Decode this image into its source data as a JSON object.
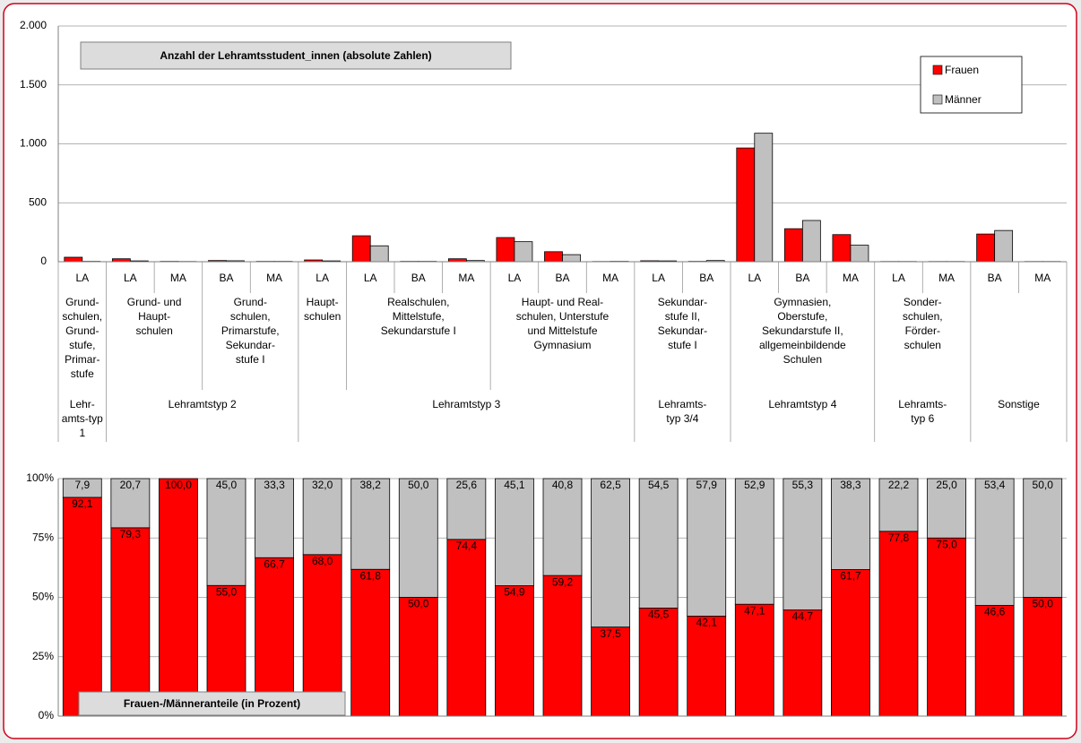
{
  "chart_data": [
    {
      "type": "bar",
      "title": "Anzahl der Lehramtsstudent_innen  (absolute Zahlen)",
      "ylim": [
        0,
        2000
      ],
      "yticks": [
        0,
        500,
        {
          "value": 1000,
          "label": "1.000"
        },
        {
          "value": 1500,
          "label": "1.500"
        },
        {
          "value": 2000,
          "label": "2.000"
        }
      ],
      "grid": true,
      "legend": "upper right",
      "types": [
        {
          "label": "Lehr-\namts-typ\n1",
          "groups": [
            {
              "label": "Grund-\nschulen,\nGrund-\nstufe,\nPrimar-\nstufe",
              "categories": [
                "LA"
              ]
            }
          ]
        },
        {
          "label": "Lehramtstyp 2",
          "groups": [
            {
              "label": "Grund- und\nHaupt-\nschulen",
              "categories": [
                "LA",
                "MA"
              ]
            },
            {
              "label": "Grund-\nschulen,\nPrimarstufe,\nSekundar-\nstufe I",
              "categories": [
                "BA",
                "MA"
              ]
            }
          ]
        },
        {
          "label": "Lehramtstyp 3",
          "groups": [
            {
              "label": "Haupt-\nschulen",
              "categories": [
                "LA"
              ]
            },
            {
              "label": "Realschulen,\nMittelstufe,\nSekundarstufe I",
              "categories": [
                "LA",
                "BA",
                "MA"
              ]
            },
            {
              "label": "Haupt- und Real-\nschulen, Unterstufe\nund Mittelstufe\nGymnasium",
              "categories": [
                "LA",
                "BA",
                "MA"
              ]
            }
          ]
        },
        {
          "label": "Lehramts-\ntyp 3/4",
          "groups": [
            {
              "label": "Sekundar-\nstufe II,\nSekundar-\nstufe I",
              "categories": [
                "LA",
                "BA"
              ]
            }
          ]
        },
        {
          "label": "Lehramtstyp 4",
          "groups": [
            {
              "label": "Gymnasien,\nOberstufe,\nSekundarstufe II,\nallgemeinbildende\nSchulen",
              "categories": [
                "LA",
                "BA",
                "MA"
              ]
            }
          ]
        },
        {
          "label": "Lehramts-\ntyp 6",
          "groups": [
            {
              "label": "Sonder-\nschulen,\nFörder-\nschulen",
              "categories": [
                "LA",
                "MA"
              ]
            }
          ]
        },
        {
          "label": "Sonstige",
          "groups": [
            {
              "label": null,
              "categories": [
                "BA",
                "MA"
              ]
            }
          ]
        }
      ],
      "series": [
        {
          "name": "Frauen",
          "color": "#ff0000",
          "values": [
            38,
            25,
            3,
            10,
            3,
            15,
            220,
            3,
            25,
            205,
            85,
            2,
            8,
            3,
            965,
            280,
            230,
            2,
            2,
            235,
            2
          ]
        },
        {
          "name": "Männer",
          "color": "#c0c0c0",
          "values": [
            3,
            7,
            2,
            8,
            3,
            7,
            135,
            3,
            10,
            170,
            60,
            3,
            7,
            10,
            1090,
            350,
            140,
            2,
            2,
            265,
            2
          ]
        }
      ]
    },
    {
      "type": "stacked_bar",
      "title": "Frauen-/Männeranteile (in Prozent)",
      "ylim": [
        0,
        100
      ],
      "yticks": [
        {
          "value": 0,
          "label": "0%"
        },
        {
          "value": 25,
          "label": "25%"
        },
        {
          "value": 50,
          "label": "50%"
        },
        {
          "value": 75,
          "label": "75%"
        },
        {
          "value": 100,
          "label": "100%"
        }
      ],
      "grid": true,
      "series": [
        {
          "name": "Frauen",
          "color": "#ff0000",
          "values": [
            92.1,
            79.3,
            100.0,
            55.0,
            66.7,
            68.0,
            61.8,
            50.0,
            74.4,
            54.9,
            59.2,
            37.5,
            45.5,
            42.1,
            47.1,
            44.7,
            61.7,
            77.8,
            75.0,
            46.6,
            50.0
          ],
          "value_labels": [
            "92,1",
            "79,3",
            "100,0",
            "55,0",
            "66,7",
            "68,0",
            "61,8",
            "50,0",
            "74,4",
            "54,9",
            "59,2",
            "37,5",
            "45,5",
            "42,1",
            "47,1",
            "44,7",
            "61,7",
            "77,8",
            "75,0",
            "46,6",
            "50,0"
          ]
        },
        {
          "name": "Männer",
          "color": "#c0c0c0",
          "values": [
            7.9,
            20.7,
            0,
            45.0,
            33.3,
            32.0,
            38.2,
            50.0,
            25.6,
            45.1,
            40.8,
            62.5,
            54.5,
            57.9,
            52.9,
            55.3,
            38.3,
            22.2,
            25.0,
            53.4,
            50.0
          ],
          "value_labels": [
            "7,9",
            "20,7",
            null,
            "45,0",
            "33,3",
            "32,0",
            "38,2",
            "50,0",
            "25,6",
            "45,1",
            "40,8",
            "62,5",
            "54,5",
            "57,9",
            "52,9",
            "55,3",
            "38,3",
            "22,2",
            "25,0",
            "53,4",
            "50,0"
          ]
        }
      ]
    }
  ]
}
